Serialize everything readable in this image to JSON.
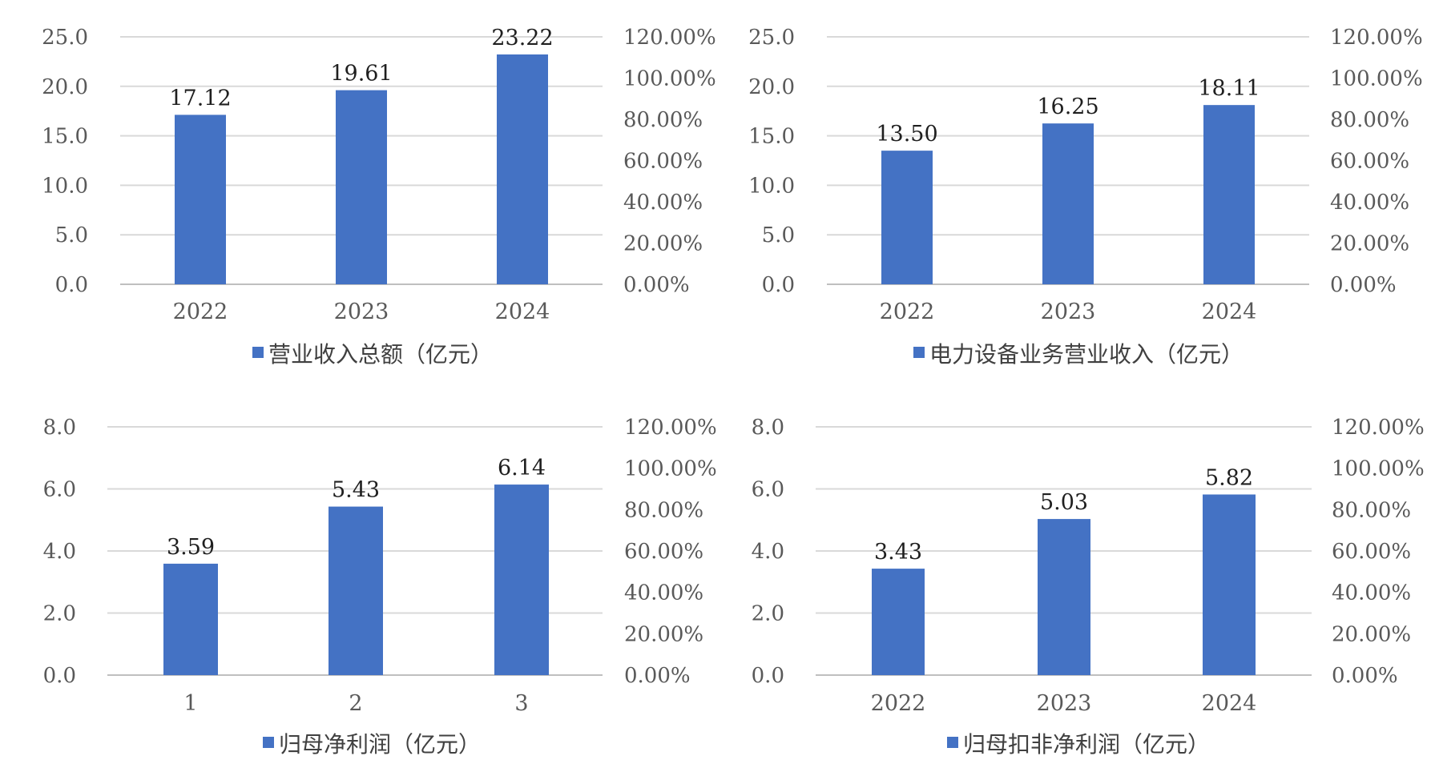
{
  "colors": {
    "bar": "#4472C4",
    "grid": "#D9D9D9",
    "text": "#595959"
  },
  "chart_data": [
    {
      "type": "bar",
      "categories": [
        "2022",
        "2023",
        "2024"
      ],
      "series": [
        {
          "name": "营业收入总额（亿元）",
          "values": [
            17.12,
            19.61,
            23.22
          ]
        }
      ],
      "data_labels": [
        "17.12",
        "19.61",
        "23.22"
      ],
      "ylim": [
        0,
        25
      ],
      "yticks": [
        "0.0",
        "5.0",
        "10.0",
        "15.0",
        "20.0",
        "25.0"
      ],
      "y2lim": [
        0,
        1.2
      ],
      "y2ticks": [
        "0.00%",
        "20.00%",
        "40.00%",
        "60.00%",
        "80.00%",
        "100.00%",
        "120.00%"
      ],
      "grid": true,
      "legend": "bottom"
    },
    {
      "type": "bar",
      "categories": [
        "2022",
        "2023",
        "2024"
      ],
      "series": [
        {
          "name": "电力设备业务营业收入（亿元）",
          "values": [
            13.5,
            16.25,
            18.11
          ]
        }
      ],
      "data_labels": [
        "13.50",
        "16.25",
        "18.11"
      ],
      "ylim": [
        0,
        25
      ],
      "yticks": [
        "0.0",
        "5.0",
        "10.0",
        "15.0",
        "20.0",
        "25.0"
      ],
      "y2lim": [
        0,
        1.2
      ],
      "y2ticks": [
        "0.00%",
        "20.00%",
        "40.00%",
        "60.00%",
        "80.00%",
        "100.00%",
        "120.00%"
      ],
      "grid": true,
      "legend": "bottom"
    },
    {
      "type": "bar",
      "categories": [
        "1",
        "2",
        "3"
      ],
      "series": [
        {
          "name": "归母净利润（亿元）",
          "values": [
            3.59,
            5.43,
            6.14
          ]
        }
      ],
      "data_labels": [
        "3.59",
        "5.43",
        "6.14"
      ],
      "ylim": [
        0,
        8
      ],
      "yticks": [
        "0.0",
        "2.0",
        "4.0",
        "6.0",
        "8.0"
      ],
      "y2lim": [
        0,
        1.2
      ],
      "y2ticks": [
        "0.00%",
        "20.00%",
        "40.00%",
        "60.00%",
        "80.00%",
        "100.00%",
        "120.00%"
      ],
      "grid": true,
      "legend": "bottom"
    },
    {
      "type": "bar",
      "categories": [
        "2022",
        "2023",
        "2024"
      ],
      "series": [
        {
          "name": "归母扣非净利润（亿元）",
          "values": [
            3.43,
            5.03,
            5.82
          ]
        }
      ],
      "data_labels": [
        "3.43",
        "5.03",
        "5.82"
      ],
      "ylim": [
        0,
        8
      ],
      "yticks": [
        "0.0",
        "2.0",
        "4.0",
        "6.0",
        "8.0"
      ],
      "y2lim": [
        0,
        1.2
      ],
      "y2ticks": [
        "0.00%",
        "20.00%",
        "40.00%",
        "60.00%",
        "80.00%",
        "100.00%",
        "120.00%"
      ],
      "grid": true,
      "legend": "bottom"
    }
  ]
}
